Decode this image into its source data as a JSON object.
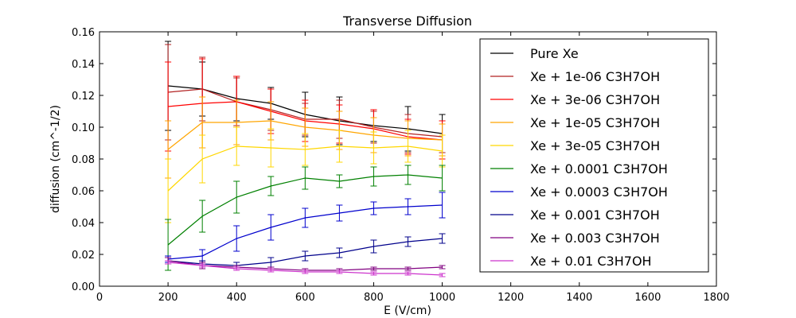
{
  "chart_data": {
    "type": "line",
    "title": "Transverse Diffusion",
    "xlabel": "E (V/cm)",
    "ylabel": "diffusion (cm^-1/2)",
    "xlim": [
      0,
      1800
    ],
    "ylim": [
      0,
      0.16
    ],
    "xticks": [
      "0",
      "200",
      "400",
      "600",
      "800",
      "1000",
      "1200",
      "1400",
      "1600",
      "1800"
    ],
    "yticks": [
      "0.00",
      "0.02",
      "0.04",
      "0.06",
      "0.08",
      "0.10",
      "0.12",
      "0.14",
      "0.16"
    ],
    "grid": false,
    "legend_position": "top-right",
    "x": [
      200,
      300,
      400,
      500,
      600,
      700,
      800,
      900,
      1000
    ],
    "series": [
      {
        "name": "Pure Xe",
        "color": "#000000",
        "values": [
          0.126,
          0.124,
          0.118,
          0.115,
          0.108,
          0.104,
          0.101,
          0.099,
          0.096
        ],
        "errors": [
          0.028,
          0.017,
          0.014,
          0.01,
          0.014,
          0.015,
          0.01,
          0.014,
          0.012
        ]
      },
      {
        "name": "Xe + 1e-06 C3H7OH",
        "color": "#b22222",
        "values": [
          0.122,
          0.124,
          0.116,
          0.111,
          0.105,
          0.105,
          0.1,
          0.096,
          0.094
        ],
        "errors": [
          0.03,
          0.02,
          0.015,
          0.013,
          0.01,
          0.012,
          0.01,
          0.012,
          0.01
        ]
      },
      {
        "name": "Xe + 3e-06 C3H7OH",
        "color": "#ff0000",
        "values": [
          0.113,
          0.115,
          0.116,
          0.11,
          0.104,
          0.102,
          0.099,
          0.094,
          0.092
        ],
        "errors": [
          0.028,
          0.028,
          0.016,
          0.014,
          0.013,
          0.012,
          0.012,
          0.011,
          0.012
        ]
      },
      {
        "name": "Xe + 1e-05 C3H7OH",
        "color": "#ffa500",
        "values": [
          0.086,
          0.103,
          0.103,
          0.104,
          0.1,
          0.098,
          0.095,
          0.093,
          0.092
        ],
        "errors": [
          0.018,
          0.016,
          0.014,
          0.012,
          0.012,
          0.012,
          0.011,
          0.011,
          0.01
        ]
      },
      {
        "name": "Xe + 3e-05 C3H7OH",
        "color": "#ffd700",
        "values": [
          0.06,
          0.08,
          0.088,
          0.087,
          0.086,
          0.088,
          0.087,
          0.088,
          0.085
        ],
        "errors": [
          0.02,
          0.015,
          0.012,
          0.012,
          0.01,
          0.01,
          0.01,
          0.01,
          0.01
        ]
      },
      {
        "name": "Xe + 0.0001 C3H7OH",
        "color": "#008000",
        "values": [
          0.026,
          0.044,
          0.056,
          0.063,
          0.068,
          0.066,
          0.069,
          0.07,
          0.068
        ],
        "errors": [
          0.016,
          0.01,
          0.01,
          0.006,
          0.007,
          0.004,
          0.006,
          0.006,
          0.008
        ]
      },
      {
        "name": "Xe + 0.0003 C3H7OH",
        "color": "#0000cd",
        "values": [
          0.017,
          0.019,
          0.03,
          0.037,
          0.043,
          0.046,
          0.049,
          0.05,
          0.051
        ],
        "errors": [
          0.002,
          0.004,
          0.008,
          0.008,
          0.006,
          0.005,
          0.004,
          0.005,
          0.008
        ]
      },
      {
        "name": "Xe + 0.001 C3H7OH",
        "color": "#00008b",
        "values": [
          0.016,
          0.014,
          0.013,
          0.015,
          0.019,
          0.021,
          0.025,
          0.028,
          0.03
        ],
        "errors": [
          0.002,
          0.002,
          0.002,
          0.003,
          0.003,
          0.003,
          0.004,
          0.003,
          0.003
        ]
      },
      {
        "name": "Xe + 0.003 C3H7OH",
        "color": "#800080",
        "values": [
          0.016,
          0.013,
          0.012,
          0.011,
          0.01,
          0.01,
          0.011,
          0.011,
          0.012
        ],
        "errors": [
          0.002,
          0.002,
          0.001,
          0.001,
          0.001,
          0.001,
          0.001,
          0.001,
          0.001
        ]
      },
      {
        "name": "Xe + 0.01 C3H7OH",
        "color": "#cc33cc",
        "values": [
          0.015,
          0.013,
          0.011,
          0.01,
          0.009,
          0.009,
          0.008,
          0.008,
          0.007
        ],
        "errors": [
          0.001,
          0.001,
          0.001,
          0.001,
          0.001,
          0.001,
          0.001,
          0.001,
          0.001
        ]
      }
    ]
  }
}
